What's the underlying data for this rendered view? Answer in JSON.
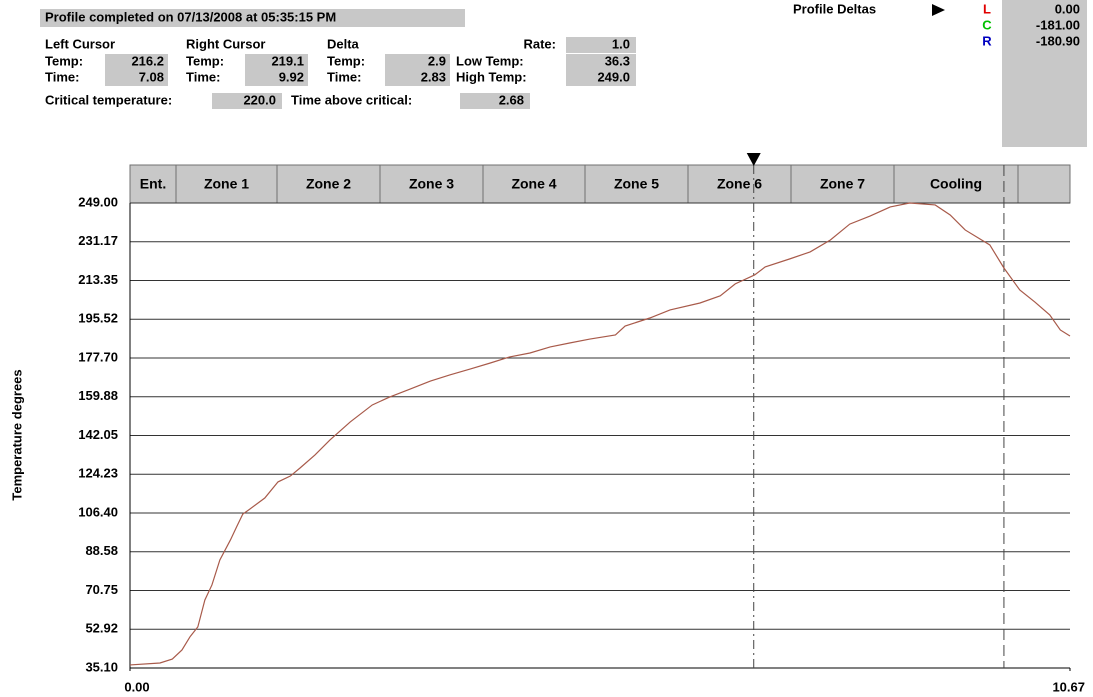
{
  "header": {
    "title": "Profile completed on 07/13/2008 at 05:35:15 PM",
    "cursors": [
      {
        "name": "Left Cursor",
        "temp_label": "Temp:",
        "temp": 216.2,
        "time_label": "Time:",
        "time": 7.08
      },
      {
        "name": "Right Cursor",
        "temp_label": "Temp:",
        "temp": 219.1,
        "time_label": "Time:",
        "time": 9.92
      },
      {
        "name": "Delta",
        "temp_label": "Temp:",
        "temp": 2.9,
        "time_label": "Time:",
        "time": 2.83
      }
    ],
    "rate_label": "Rate:",
    "rate": "1.0",
    "low_temp_label": "Low Temp:",
    "low_temp": 36.3,
    "high_temp_label": "High Temp:",
    "high_temp": "249.0",
    "critical_label": "Critical temperature:",
    "critical": "220.0",
    "above_label": "Time above critical:",
    "above": 2.68
  },
  "deltas": {
    "title": "Profile Deltas",
    "rows": [
      {
        "key": "L",
        "color": "#e00000",
        "value": "0.00"
      },
      {
        "key": "C",
        "color": "#00c000",
        "value": "-181.00"
      },
      {
        "key": "R",
        "color": "#0000c0",
        "value": "-180.90"
      }
    ]
  },
  "chart_data": {
    "type": "line",
    "ylabel": "Temperature degrees",
    "zones": [
      "Ent.",
      "Zone 1",
      "Zone 2",
      "Zone 3",
      "Zone 4",
      "Zone 5",
      "Zone 6",
      "Zone 7",
      "Cooling"
    ],
    "color": "#a85a4a",
    "x": [
      0.0,
      0.34,
      0.48,
      0.59,
      0.68,
      0.77,
      0.85,
      0.93,
      1.02,
      1.14,
      1.21,
      1.28,
      1.36,
      1.53,
      1.68,
      1.82,
      1.93,
      2.1,
      2.27,
      2.5,
      2.75,
      2.95,
      3.18,
      3.41,
      3.63,
      3.86,
      4.09,
      4.31,
      4.54,
      4.77,
      4.99,
      5.22,
      5.51,
      5.62,
      5.9,
      6.13,
      6.47,
      6.7,
      6.87,
      7.09,
      7.21,
      7.49,
      7.72,
      7.95,
      8.17,
      8.4,
      8.63,
      8.85,
      9.14,
      9.31,
      9.48,
      9.76,
      9.92,
      10.1,
      10.27,
      10.44,
      10.56,
      10.67
    ],
    "values": [
      36.5,
      37.4,
      39.2,
      43.4,
      49.4,
      54.0,
      66.4,
      73.3,
      84.8,
      94.0,
      100.0,
      105.9,
      108.2,
      113.3,
      120.7,
      123.4,
      127.1,
      133.1,
      140.0,
      148.3,
      156.1,
      159.8,
      163.4,
      167.1,
      169.9,
      172.6,
      175.4,
      178.2,
      180.0,
      182.8,
      184.6,
      186.4,
      188.3,
      192.4,
      196.1,
      199.8,
      203.0,
      206.3,
      211.8,
      215.9,
      219.6,
      223.3,
      226.5,
      232.0,
      239.3,
      243.0,
      247.2,
      249.0,
      248.1,
      243.5,
      236.6,
      229.7,
      219.1,
      209.0,
      203.5,
      197.5,
      190.6,
      187.8
    ],
    "xlim": [
      0,
      10.67
    ],
    "xticks": [
      {
        "value": 0,
        "label": "0.00"
      },
      10.67
    ],
    "ylim": [
      35.1,
      249
    ],
    "yticks": [
      {
        "value": 35.1,
        "label": "35.10"
      },
      52.92,
      70.75,
      88.58,
      {
        "value": 106.4,
        "label": "106.40"
      },
      124.23,
      142.05,
      159.88,
      {
        "value": 177.7,
        "label": "177.70"
      },
      195.52,
      213.35,
      231.17,
      {
        "value": 249,
        "label": "249.00"
      }
    ],
    "grid": true
  }
}
